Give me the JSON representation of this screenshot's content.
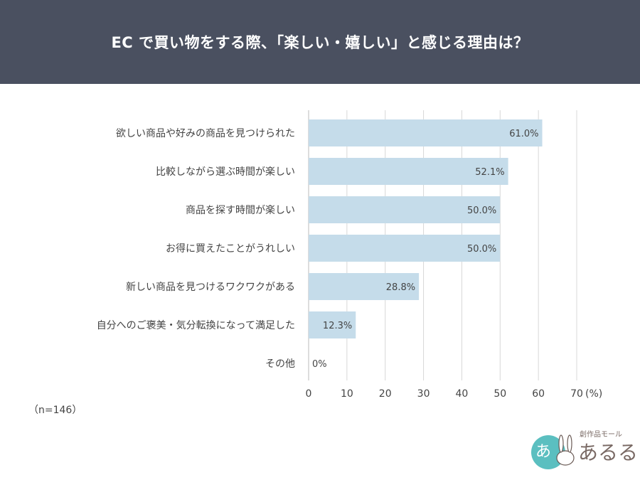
{
  "title": "EC で買い物をする際、「楽しい・嬉しい」と感じる理由は？",
  "sample_note": "（n=146）",
  "logo": {
    "text_small": "創作品モール",
    "text_large": "あるる",
    "badge": "あ"
  },
  "colors": {
    "header_bg": "#4a5060",
    "bar": "#c5dcea",
    "grid": "#d8d8d8"
  },
  "chart_data": {
    "type": "bar",
    "orientation": "horizontal",
    "categories": [
      "欲しい商品や好みの商品を見つけられた",
      "比較しながら選ぶ時間が楽しい",
      "商品を探す時間が楽しい",
      "お得に買えたことがうれしい",
      "新しい商品を見つけるワクワクがある",
      "自分へのご褒美・気分転換になって満足した",
      "その他"
    ],
    "values": [
      61.0,
      52.1,
      50.0,
      50.0,
      28.8,
      12.3,
      0
    ],
    "value_labels": [
      "61.0%",
      "52.1%",
      "50.0%",
      "50.0%",
      "28.8%",
      "12.3%",
      "0%"
    ],
    "xlim": [
      0,
      70
    ],
    "xticks": [
      0,
      10,
      20,
      30,
      40,
      50,
      60,
      70
    ],
    "xunit": "(%)",
    "grid": true
  }
}
